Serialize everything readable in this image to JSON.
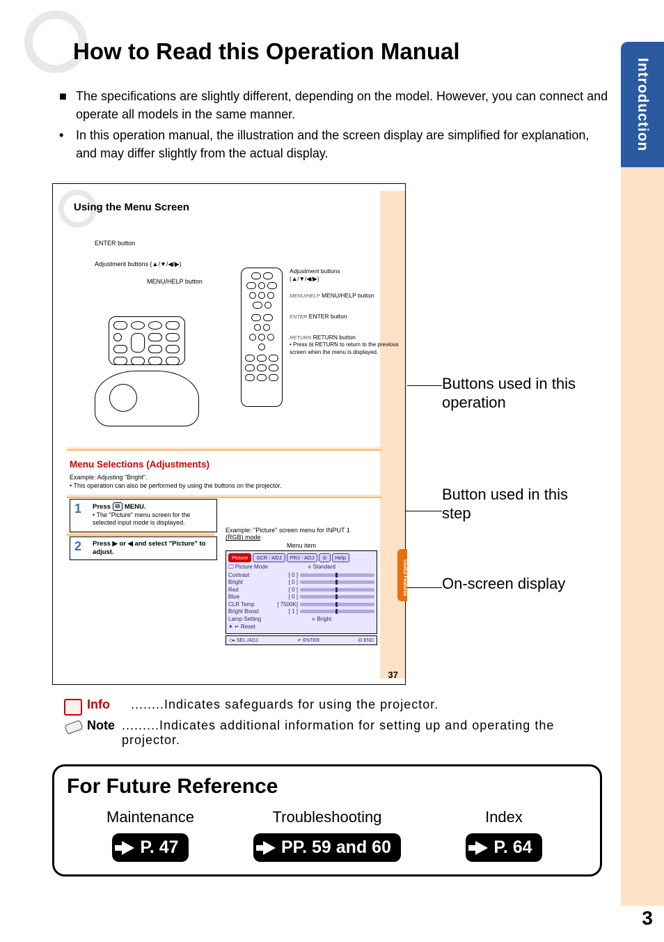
{
  "side_tab": "Introduction",
  "page_title": "How to Read this Operation Manual",
  "bullets": {
    "b1_sym": "■",
    "b1": "The specifications are slightly different, depending on the model. However, you can connect and operate all models in the same manner.",
    "b2_sym": "•",
    "b2": "In this operation manual, the illustration and the screen display are simplified for explanation, and may differ slightly from the actual display."
  },
  "sample": {
    "title": "Using the Menu Screen",
    "diagram_labels": {
      "enter": "ENTER button",
      "adj": "Adjustment buttons (▲/▼/◀/▶)",
      "menuhelp": "MENU/HELP button"
    },
    "remote_section": {
      "adj_title": "Adjustment buttons",
      "adj_sub": "(▲/▼/◀/▶)",
      "menuhelp_it": "MENU/HELP",
      "menuhelp": "MENU/HELP button",
      "enter_it": "ENTER",
      "enter": "ENTER button",
      "return_it": "RETURN",
      "return": "RETURN button",
      "return_desc": "• Press ⊟ RETURN to return to the previous screen when the menu is displayed."
    },
    "menu_sel_title": "Menu Selections (Adjustments)",
    "example_text": {
      "l1": "Example: Adjusting \"Bright\".",
      "l2": "• This operation can also be performed by using the buttons on the projector."
    },
    "step1": {
      "num": "1",
      "title": "Press ⊟ MENU.",
      "desc": "• The \"Picture\" menu screen for the selected input mode is displayed."
    },
    "step2": {
      "num": "2",
      "title": "Press ▶ or ◀ and select \"Picture\" to adjust."
    },
    "osd": {
      "intro1": "Example: \"Picture\" screen menu for INPUT 1",
      "intro2": "(RGB) mode",
      "intro3": "Menu item",
      "tabs": [
        "Picture",
        "SCR - ADJ",
        "PRJ - ADJ",
        "⊘",
        "Help"
      ],
      "rows": [
        {
          "lab": "🖵 Picture Mode",
          "type": "text",
          "rt": "⟡   Standard"
        },
        {
          "lab": "Contrast",
          "val": "[    0 ]"
        },
        {
          "lab": "Bright",
          "val": "[    0 ]"
        },
        {
          "lab": "Red",
          "val": "[    0 ]"
        },
        {
          "lab": "Blue",
          "val": "[    0 ]"
        },
        {
          "lab": "CLR Temp",
          "val": "[ 7500K]"
        },
        {
          "lab": "Bright Boost",
          "val": "[    1 ]"
        },
        {
          "lab": "Lamp Setting",
          "type": "text",
          "rt": "⟡   Bright"
        },
        {
          "lab": "✦ ↵ Reset",
          "type": "plain"
        }
      ],
      "foot": {
        "l": "◇▸ SEL./ADJ.",
        "m": "↵ ENTER",
        "r": "⊟ END"
      }
    },
    "useful_tab": "Useful Features",
    "page_num": "37"
  },
  "callouts": {
    "c1": "Buttons used in this operation",
    "c2": "Button used in this step",
    "c3": "On-screen display"
  },
  "info": {
    "label": "Info",
    "text": "........Indicates safeguards for using the projector."
  },
  "note": {
    "label": "Note",
    "text": ".........Indicates additional information for setting up and operating the projector."
  },
  "future": {
    "title": "For Future Reference",
    "cols": [
      {
        "label": "Maintenance",
        "page": "P. 47"
      },
      {
        "label": "Troubleshooting",
        "page": "PP. 59 and 60"
      },
      {
        "label": "Index",
        "page": "P. 64"
      }
    ]
  },
  "page_number": "3",
  "colors": {
    "side_tab_bg": "#2c5aa0",
    "peach": "#ffe2c6",
    "red": "#c40000",
    "step_blue": "#3a6fc4"
  }
}
